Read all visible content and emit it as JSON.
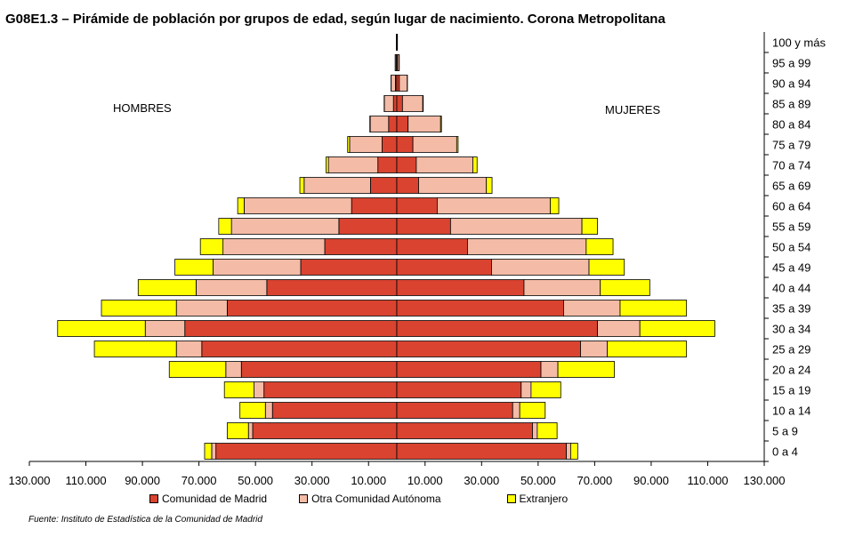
{
  "chart_data": {
    "type": "bar",
    "orientation": "horizontal-pyramid",
    "title": "G08E1.3 – Pirámide de población por grupos de edad, según lugar de nacimiento. Corona Metropolitana",
    "left_label": "HOMBRES",
    "right_label": "MUJERES",
    "x_tick_labels": [
      "130.000",
      "110.000",
      "90.000",
      "70.000",
      "50.000",
      "30.000",
      "10.000",
      "10.000",
      "30.000",
      "50.000",
      "70.000",
      "90.000",
      "110.000",
      "130.000"
    ],
    "x_ticks": [
      -130000,
      -110000,
      -90000,
      -70000,
      -50000,
      -30000,
      -10000,
      10000,
      30000,
      50000,
      70000,
      90000,
      110000,
      130000
    ],
    "xlim": [
      -130000,
      130000
    ],
    "categories": [
      "0 a 4",
      "5 a 9",
      "10 a 14",
      "15 a 19",
      "20 a 24",
      "25 a 29",
      "30 a 34",
      "35 a 39",
      "40 a 44",
      "45 a 49",
      "50 a 54",
      "55 a 59",
      "60 a 64",
      "65 a 69",
      "70 a 74",
      "75 a 79",
      "80 a 84",
      "85 a 89",
      "90 a 94",
      "95 a 99",
      "100 y más"
    ],
    "series": [
      {
        "name": "Comunidad de Madrid",
        "color": "#D94330",
        "men": [
          64000,
          51000,
          44000,
          47000,
          55000,
          69000,
          75000,
          60000,
          46000,
          34000,
          25500,
          20500,
          16000,
          9300,
          6700,
          5200,
          2900,
          1200,
          500,
          150,
          40
        ],
        "women": [
          60000,
          48000,
          41000,
          44000,
          51000,
          65000,
          71000,
          59000,
          45000,
          33500,
          25000,
          19000,
          14300,
          7700,
          6900,
          5700,
          4000,
          2000,
          900,
          250,
          60
        ]
      },
      {
        "name": "Otra Comunidad Autónoma",
        "color": "#F4BBA6",
        "men": [
          1500,
          1500,
          2500,
          3500,
          5500,
          9000,
          14000,
          18000,
          25000,
          31000,
          36000,
          38000,
          38000,
          23500,
          17500,
          11500,
          6500,
          3200,
          1500,
          400,
          100
        ],
        "women": [
          1500,
          1700,
          2500,
          3500,
          6000,
          9500,
          15000,
          20000,
          27000,
          34500,
          42000,
          46500,
          40000,
          24000,
          20000,
          15500,
          11500,
          7200,
          2800,
          600,
          150
        ]
      },
      {
        "name": "Extranjero",
        "color": "#FFFF00",
        "men": [
          2500,
          7500,
          9000,
          10500,
          20000,
          29000,
          31000,
          26500,
          20500,
          13500,
          8000,
          4500,
          2300,
          1500,
          800,
          700,
          150,
          80,
          40,
          10,
          5
        ],
        "women": [
          2500,
          7000,
          9000,
          10500,
          20000,
          28000,
          26500,
          23500,
          17500,
          12500,
          9500,
          5500,
          3000,
          2000,
          1500,
          500,
          300,
          150,
          50,
          10,
          5
        ]
      }
    ]
  },
  "legend": [
    "Comunidad de Madrid",
    "Otra Comunidad Autónoma",
    "Extranjero"
  ],
  "source": "Fuente: Instituto de Estadística de la Comunidad de Madrid"
}
